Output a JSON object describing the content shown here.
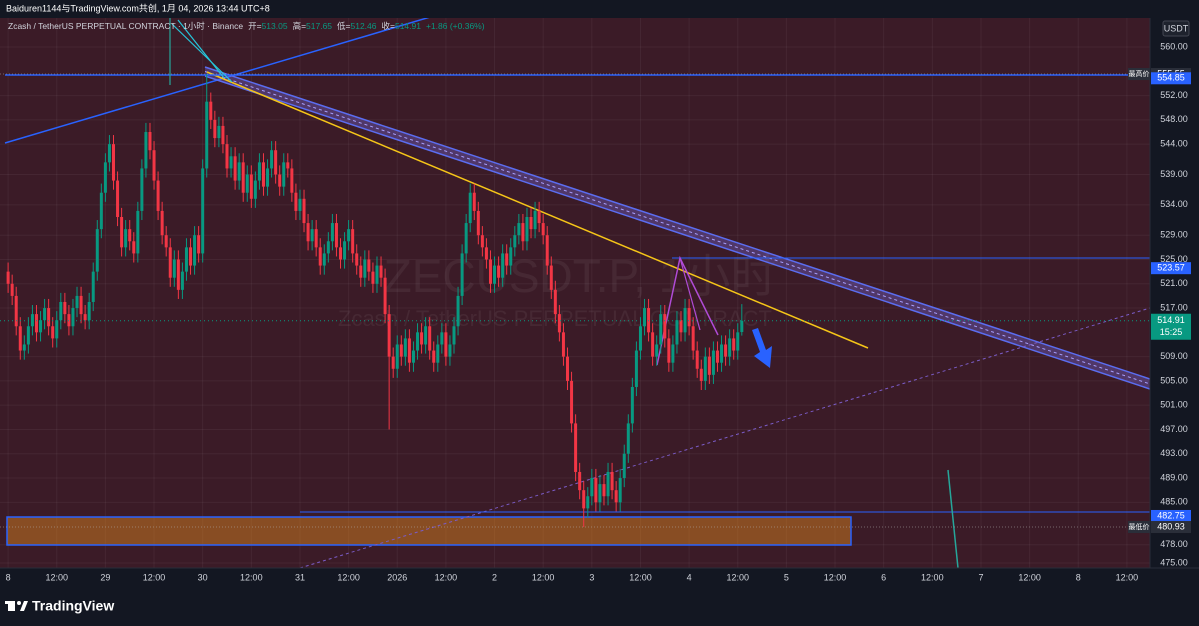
{
  "header": "Baiduren1144与TradingView.com共创, 1月 04, 2026 13:44 UTC+8",
  "footer": "TradingView",
  "chart_data": {
    "type": "candlestick",
    "legend": {
      "symbol": "Zcash / TetherUS PERPETUAL CONTRACT · 1小时 · Binance",
      "open_label": "开=",
      "high_label": "高=",
      "low_label": "低=",
      "close_label": "收=",
      "change": "+1.86 (+0.36%)"
    },
    "watermark": "ZECUSDT.P, 1小时",
    "watermark_sub": "Zcash / TetherUS PERPETUAL CONTRACT",
    "currency": "USDT",
    "up_color": "#089981",
    "down_color": "#f23645",
    "grid": true,
    "xlim": [
      -2,
      281.7
    ],
    "ylim": [
      474.18,
      564.78
    ],
    "xticks": [
      {
        "value": 0,
        "label": "8"
      },
      {
        "value": 12,
        "label": "12:00"
      },
      {
        "value": 24,
        "label": "29"
      },
      {
        "value": 36,
        "label": "12:00"
      },
      {
        "value": 48,
        "label": "30"
      },
      {
        "value": 60,
        "label": "12:00"
      },
      {
        "value": 72,
        "label": "31"
      },
      {
        "value": 84,
        "label": "12:00"
      },
      {
        "value": 96,
        "label": "2026"
      },
      {
        "value": 108,
        "label": "12:00"
      },
      {
        "value": 120,
        "label": "2"
      },
      {
        "value": 132,
        "label": "12:00"
      },
      {
        "value": 144,
        "label": "3"
      },
      {
        "value": 156,
        "label": "12:00"
      },
      {
        "value": 168,
        "label": "4"
      },
      {
        "value": 180,
        "label": "12:00"
      },
      {
        "value": 192,
        "label": "5"
      },
      {
        "value": 204,
        "label": "12:00"
      },
      {
        "value": 216,
        "label": "6"
      },
      {
        "value": 228,
        "label": "12:00"
      },
      {
        "value": 240,
        "label": "7"
      },
      {
        "value": 252,
        "label": "12:00"
      },
      {
        "value": 264,
        "label": "8"
      },
      {
        "value": 276,
        "label": "12:00"
      }
    ],
    "yticks": [
      {
        "value": 560,
        "label": "560.00"
      },
      {
        "value": 552,
        "label": "552.00"
      },
      {
        "value": 548,
        "label": "548.00"
      },
      {
        "value": 544,
        "label": "544.00"
      },
      {
        "value": 539,
        "label": "539.00"
      },
      {
        "value": 534,
        "label": "534.00"
      },
      {
        "value": 529,
        "label": "529.00"
      },
      {
        "value": 525,
        "label": "525.00"
      },
      {
        "value": 521,
        "label": "521.00"
      },
      {
        "value": 517,
        "label": "517.00"
      },
      {
        "value": 509,
        "label": "509.00"
      },
      {
        "value": 505,
        "label": "505.00"
      },
      {
        "value": 501,
        "label": "501.00"
      },
      {
        "value": 497,
        "label": "497.00"
      },
      {
        "value": 493,
        "label": "493.00"
      },
      {
        "value": 489,
        "label": "489.00"
      },
      {
        "value": 485,
        "label": "485.00"
      },
      {
        "value": 478,
        "label": "478.00"
      },
      {
        "value": 475,
        "label": "475.00"
      }
    ],
    "price_lines": [
      {
        "value": 555.55,
        "note": "最高价",
        "color": "#2a2e39"
      },
      {
        "value": 554.85,
        "color": "#2962ff"
      },
      {
        "value": 523.57,
        "color": "#2962ff"
      },
      {
        "value": 514.91,
        "countdown": "15:25",
        "color": "#089981"
      },
      {
        "value": 482.75,
        "color": "#2962ff"
      },
      {
        "value": 480.93,
        "note": "最低价",
        "color": "#2a2e39"
      }
    ],
    "x": [
      0,
      1,
      2,
      3,
      4,
      5,
      6,
      7,
      8,
      9,
      10,
      11,
      12,
      13,
      14,
      15,
      16,
      17,
      18,
      19,
      20,
      21,
      22,
      23,
      24,
      25,
      26,
      27,
      28,
      29,
      30,
      31,
      32,
      33,
      34,
      35,
      36,
      37,
      38,
      39,
      40,
      41,
      42,
      43,
      44,
      45,
      46,
      47,
      48,
      49,
      50,
      51,
      52,
      53,
      54,
      55,
      56,
      57,
      58,
      59,
      60,
      61,
      62,
      63,
      64,
      65,
      66,
      67,
      68,
      69,
      70,
      71,
      72,
      73,
      74,
      75,
      76,
      77,
      78,
      79,
      80,
      81,
      82,
      83,
      84,
      85,
      86,
      87,
      88,
      89,
      90,
      91,
      92,
      93,
      94,
      95,
      96,
      97,
      98,
      99,
      100,
      101,
      102,
      103,
      104,
      105,
      106,
      107,
      108,
      109,
      110,
      111,
      112,
      113,
      114,
      115,
      116,
      117,
      118,
      119,
      120,
      121,
      122,
      123,
      124,
      125,
      126,
      127,
      128,
      129,
      130,
      131,
      132,
      133,
      134,
      135,
      136,
      137,
      138,
      139,
      140,
      141,
      142,
      143,
      144,
      145,
      146,
      147,
      148,
      149,
      150,
      151,
      152,
      153,
      154,
      155,
      156,
      157,
      158,
      159,
      160,
      161,
      162,
      163,
      164,
      165,
      166,
      167,
      168,
      169,
      170,
      171,
      172,
      173,
      174,
      175,
      176,
      177,
      178,
      179,
      180,
      181
    ],
    "ohlc": [
      [
        523,
        524.5,
        519.5,
        521
      ],
      [
        521,
        522.5,
        517.5,
        519
      ],
      [
        519,
        520.5,
        512.5,
        514
      ],
      [
        514,
        515.5,
        508.5,
        510
      ],
      [
        510,
        512.5,
        508.5,
        511
      ],
      [
        511,
        515.5,
        509.5,
        514
      ],
      [
        514,
        517.5,
        512.5,
        516
      ],
      [
        516,
        517.5,
        511.5,
        513
      ],
      [
        513,
        516.5,
        511.5,
        515
      ],
      [
        515,
        518.5,
        513.5,
        517
      ],
      [
        517,
        518.5,
        512.5,
        514
      ],
      [
        514,
        515.5,
        510.5,
        512
      ],
      [
        512,
        516.5,
        510.5,
        515
      ],
      [
        515,
        519.5,
        513.5,
        518
      ],
      [
        518,
        519.5,
        514.5,
        516
      ],
      [
        516,
        517.5,
        512.5,
        514
      ],
      [
        514,
        518.5,
        512.5,
        517
      ],
      [
        517,
        520.5,
        515.5,
        519
      ],
      [
        519,
        520.5,
        514.5,
        516
      ],
      [
        516,
        517.5,
        513.5,
        515
      ],
      [
        515,
        519.5,
        513.5,
        518
      ],
      [
        518,
        524.5,
        516.5,
        523
      ],
      [
        523,
        531.5,
        521.5,
        530
      ],
      [
        530,
        537.5,
        528.5,
        536
      ],
      [
        536,
        542.5,
        534.5,
        541
      ],
      [
        541,
        545.5,
        539.5,
        544
      ],
      [
        544,
        545.5,
        536.5,
        538
      ],
      [
        538,
        539.5,
        530.5,
        532
      ],
      [
        532,
        533.5,
        525.5,
        527
      ],
      [
        527,
        531.5,
        525.5,
        530
      ],
      [
        530,
        531.5,
        526.5,
        528
      ],
      [
        528,
        529.5,
        524.5,
        526
      ],
      [
        526,
        534.5,
        524.5,
        533
      ],
      [
        533,
        541.5,
        531.5,
        540
      ],
      [
        540,
        547.5,
        538.5,
        546
      ],
      [
        546,
        547.5,
        541.5,
        543
      ],
      [
        543,
        544.5,
        536.5,
        538
      ],
      [
        538,
        539.5,
        531.5,
        533
      ],
      [
        533,
        534.5,
        527.5,
        529
      ],
      [
        529,
        530.5,
        525.5,
        527
      ],
      [
        527,
        528.5,
        520.5,
        522
      ],
      [
        522,
        526.5,
        520.5,
        525
      ],
      [
        525,
        526.5,
        518.5,
        520
      ],
      [
        520,
        524.5,
        518.5,
        523
      ],
      [
        523,
        528.5,
        521.5,
        527
      ],
      [
        527,
        528.5,
        522.5,
        524
      ],
      [
        524,
        530.5,
        522.5,
        529
      ],
      [
        529,
        530.5,
        524.5,
        526
      ],
      [
        526,
        541.5,
        524.5,
        540
      ],
      [
        540,
        555.55,
        538.5,
        551
      ],
      [
        551,
        552.5,
        546.5,
        548
      ],
      [
        548,
        549.5,
        543.5,
        545
      ],
      [
        545,
        548.5,
        543.5,
        547
      ],
      [
        547,
        548.5,
        542.5,
        544
      ],
      [
        544,
        545.5,
        538.5,
        540
      ],
      [
        540,
        543.5,
        538.5,
        542
      ],
      [
        542,
        543.5,
        536.5,
        538
      ],
      [
        538,
        542.5,
        536.5,
        541
      ],
      [
        541,
        542.5,
        534.5,
        536
      ],
      [
        536,
        540.5,
        534.5,
        539
      ],
      [
        539,
        540.5,
        533.5,
        535
      ],
      [
        535,
        539.5,
        533.5,
        538
      ],
      [
        538,
        542.5,
        536.5,
        541
      ],
      [
        541,
        542.5,
        535.5,
        537
      ],
      [
        537,
        541.5,
        535.5,
        540
      ],
      [
        540,
        544.5,
        538.5,
        543
      ],
      [
        543,
        544.5,
        537.5,
        539
      ],
      [
        539,
        540.5,
        535.5,
        537
      ],
      [
        537,
        542.5,
        535.5,
        541
      ],
      [
        541,
        542.5,
        538.5,
        540
      ],
      [
        540,
        541.5,
        534.5,
        536
      ],
      [
        536,
        537.5,
        531.5,
        533
      ],
      [
        533,
        536.5,
        531.5,
        535
      ],
      [
        535,
        536.5,
        529.5,
        531
      ],
      [
        531,
        532.5,
        526.5,
        528
      ],
      [
        528,
        531.5,
        526.5,
        530
      ],
      [
        530,
        531.5,
        525.5,
        527
      ],
      [
        527,
        528.5,
        522.5,
        524
      ],
      [
        524,
        527.5,
        522.5,
        526
      ],
      [
        526,
        529.5,
        524.5,
        528
      ],
      [
        528,
        532.5,
        526.5,
        531
      ],
      [
        531,
        532.5,
        525.5,
        527
      ],
      [
        527,
        528.5,
        523.5,
        525
      ],
      [
        525,
        529.5,
        523.5,
        528
      ],
      [
        528,
        531.5,
        526.5,
        530
      ],
      [
        530,
        531.5,
        524.5,
        526
      ],
      [
        526,
        527.5,
        522.5,
        524
      ],
      [
        524,
        525.5,
        520.5,
        522
      ],
      [
        522,
        526.5,
        520.5,
        525
      ],
      [
        525,
        526.5,
        521.5,
        523
      ],
      [
        523,
        524.5,
        519.5,
        521
      ],
      [
        521,
        525.5,
        519.5,
        524
      ],
      [
        524,
        525.5,
        520.5,
        522
      ],
      [
        522,
        523.5,
        514.5,
        516
      ],
      [
        516,
        517.5,
        497,
        509
      ],
      [
        509,
        510.5,
        505.5,
        507
      ],
      [
        507,
        512.5,
        505.5,
        511
      ],
      [
        511,
        512.5,
        507.5,
        509
      ],
      [
        509,
        513.5,
        507.5,
        512
      ],
      [
        512,
        513.5,
        506.5,
        508
      ],
      [
        508,
        511.5,
        506.5,
        510
      ],
      [
        510,
        514.5,
        508.5,
        513
      ],
      [
        513,
        514.5,
        509.5,
        511
      ],
      [
        511,
        515.5,
        509.5,
        514
      ],
      [
        514,
        515.5,
        508.5,
        510
      ],
      [
        510,
        511.5,
        506.5,
        508
      ],
      [
        508,
        512.5,
        506.5,
        511
      ],
      [
        511,
        514.5,
        509.5,
        513
      ],
      [
        513,
        514.5,
        507.5,
        509
      ],
      [
        509,
        512.5,
        507.5,
        511
      ],
      [
        511,
        515.5,
        509.5,
        514
      ],
      [
        514,
        520.5,
        512.5,
        519
      ],
      [
        519,
        527.5,
        517.5,
        526
      ],
      [
        526,
        532.5,
        524.5,
        531
      ],
      [
        531,
        537.5,
        529.5,
        536
      ],
      [
        536,
        537.5,
        531.5,
        533
      ],
      [
        533,
        534.5,
        527.5,
        529
      ],
      [
        529,
        530.5,
        525.5,
        527
      ],
      [
        527,
        528.5,
        523.5,
        525
      ],
      [
        525,
        526.5,
        519.5,
        521
      ],
      [
        521,
        525.5,
        519.5,
        524
      ],
      [
        524,
        525.5,
        520.5,
        522
      ],
      [
        522,
        527.5,
        520.5,
        526
      ],
      [
        526,
        527.5,
        522.5,
        524
      ],
      [
        524,
        528.5,
        522.5,
        527
      ],
      [
        527,
        530.5,
        525.5,
        529
      ],
      [
        529,
        532.5,
        527.5,
        531
      ],
      [
        531,
        532.5,
        526.5,
        528
      ],
      [
        528,
        533.5,
        526.5,
        532
      ],
      [
        532,
        533.5,
        528.5,
        530
      ],
      [
        530,
        534.5,
        528.5,
        533
      ],
      [
        533,
        534.5,
        529.5,
        531
      ],
      [
        531,
        532.5,
        527.5,
        529
      ],
      [
        529,
        530.5,
        522.5,
        524
      ],
      [
        524,
        525.5,
        518.5,
        520
      ],
      [
        520,
        521.5,
        514.5,
        516
      ],
      [
        516,
        517.5,
        511.5,
        513
      ],
      [
        513,
        514.5,
        507.5,
        509
      ],
      [
        509,
        510.5,
        503.5,
        505
      ],
      [
        505,
        506.5,
        496.5,
        498
      ],
      [
        498,
        499.5,
        488.5,
        490
      ],
      [
        490,
        491.5,
        485.5,
        487
      ],
      [
        487,
        488.5,
        480.93,
        484
      ],
      [
        484,
        487.5,
        482.5,
        486
      ],
      [
        486,
        490.5,
        484.5,
        489
      ],
      [
        489,
        490.5,
        483.5,
        485
      ],
      [
        485,
        489.5,
        483.5,
        488
      ],
      [
        488,
        489.5,
        484.5,
        486
      ],
      [
        486,
        491.5,
        484.5,
        490
      ],
      [
        490,
        491.5,
        485.5,
        487
      ],
      [
        487,
        488.5,
        483.5,
        485
      ],
      [
        485,
        490.5,
        483.5,
        489
      ],
      [
        489,
        494.5,
        487.5,
        493
      ],
      [
        493,
        499.5,
        491.5,
        498
      ],
      [
        498,
        505.5,
        496.5,
        504
      ],
      [
        504,
        511.5,
        502.5,
        510
      ],
      [
        510,
        515.5,
        508.5,
        514
      ],
      [
        514,
        518.5,
        512.5,
        517
      ],
      [
        517,
        518.5,
        511.5,
        513
      ],
      [
        513,
        514.5,
        507.5,
        509
      ],
      [
        509,
        512.5,
        507.5,
        511
      ],
      [
        511,
        517.5,
        509.5,
        516
      ],
      [
        516,
        517.5,
        510.5,
        512
      ],
      [
        512,
        513.5,
        506.5,
        508
      ],
      [
        508,
        512.5,
        506.5,
        511
      ],
      [
        511,
        516.5,
        509.5,
        515
      ],
      [
        515,
        516.5,
        511.5,
        513
      ],
      [
        513,
        518.5,
        511.5,
        517
      ],
      [
        517,
        518.5,
        512.5,
        514
      ],
      [
        514,
        515.5,
        508.5,
        510
      ],
      [
        510,
        511.5,
        505.5,
        507
      ],
      [
        507,
        508.5,
        503.5,
        505
      ],
      [
        505,
        510.5,
        503.5,
        509
      ],
      [
        509,
        510.5,
        504.5,
        506
      ],
      [
        506,
        511.5,
        504.5,
        510
      ],
      [
        510,
        511.5,
        506.5,
        508
      ],
      [
        508,
        512.5,
        506.5,
        511
      ],
      [
        511,
        512.5,
        507.5,
        509
      ],
      [
        509,
        513.5,
        507.5,
        512
      ],
      [
        512,
        513.5,
        508.5,
        510
      ],
      [
        510,
        514.5,
        508.5,
        513
      ],
      [
        513.05,
        517.65,
        512.46,
        514.91
      ]
    ]
  }
}
